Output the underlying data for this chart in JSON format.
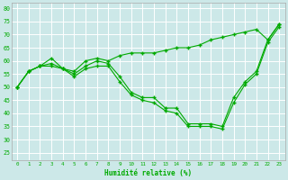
{
  "xlabel": "Humidité relative (%)",
  "bg_color": "#cce8e8",
  "grid_color": "#b8dada",
  "line_color": "#00aa00",
  "xlim": [
    -0.5,
    23.5
  ],
  "ylim": [
    22,
    82
  ],
  "yticks": [
    25,
    30,
    35,
    40,
    45,
    50,
    55,
    60,
    65,
    70,
    75,
    80
  ],
  "xticks": [
    0,
    1,
    2,
    3,
    4,
    5,
    6,
    7,
    8,
    9,
    10,
    11,
    12,
    13,
    14,
    15,
    16,
    17,
    18,
    19,
    20,
    21,
    22,
    23
  ],
  "x": [
    0,
    1,
    2,
    3,
    4,
    5,
    6,
    7,
    8,
    9,
    10,
    11,
    12,
    13,
    14,
    15,
    16,
    17,
    18,
    19,
    20,
    21,
    22,
    23
  ],
  "line_top": [
    50,
    56,
    58,
    61,
    57,
    56,
    60,
    61,
    60,
    62,
    63,
    63,
    63,
    64,
    65,
    65,
    66,
    68,
    69,
    70,
    71,
    72,
    68,
    74
  ],
  "line_mid": [
    50,
    56,
    58,
    59,
    57,
    55,
    58,
    60,
    59,
    54,
    48,
    46,
    46,
    42,
    42,
    36,
    36,
    36,
    35,
    46,
    52,
    56,
    68,
    74
  ],
  "line_bot": [
    50,
    56,
    58,
    58,
    57,
    54,
    57,
    58,
    58,
    52,
    47,
    45,
    44,
    41,
    40,
    35,
    35,
    35,
    34,
    44,
    51,
    55,
    67,
    73
  ]
}
